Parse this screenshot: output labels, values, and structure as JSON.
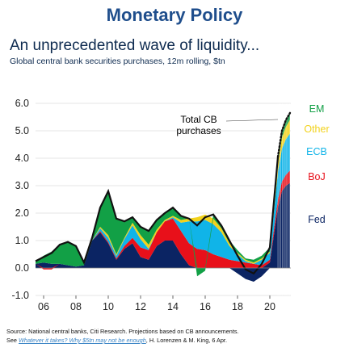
{
  "header": {
    "title": "Monetary Policy"
  },
  "chart_data": {
    "type": "area",
    "title": "An unprecedented wave of liquidity...",
    "subtitle": "Global central bank securities purchases, 12m rolling, $tn",
    "ylim": [
      -1.0,
      6.0
    ],
    "xlim": [
      2005.5,
      2021.3
    ],
    "y_ticks": [
      "6.0",
      "5.0",
      "4.0",
      "3.0",
      "2.0",
      "1.0",
      "0.0",
      "-1.0"
    ],
    "y_tick_values": [
      6,
      5,
      4,
      3,
      2,
      1,
      0,
      -1
    ],
    "x_ticks": [
      "06",
      "08",
      "10",
      "12",
      "14",
      "16",
      "18",
      "20"
    ],
    "x_tick_values": [
      2006,
      2008,
      2010,
      2012,
      2014,
      2016,
      2018,
      2020
    ],
    "x": [
      2005.5,
      2006,
      2006.5,
      2007,
      2007.5,
      2008,
      2008.5,
      2009,
      2009.5,
      2010,
      2010.5,
      2011,
      2011.5,
      2012,
      2012.5,
      2013,
      2013.5,
      2014,
      2014.5,
      2015,
      2015.5,
      2016,
      2016.5,
      2017,
      2017.5,
      2018,
      2018.5,
      2019,
      2019.5,
      2020,
      2020.5,
      2020.75,
      2021,
      2021.25
    ],
    "series": [
      {
        "name": "Fed",
        "color": "#0b2463",
        "values": [
          0.15,
          0.2,
          0.15,
          0.15,
          0.1,
          0.05,
          0.1,
          1.0,
          1.3,
          0.9,
          0.3,
          0.7,
          0.9,
          0.4,
          0.3,
          0.8,
          1.0,
          1.0,
          0.5,
          0.1,
          0.0,
          0.0,
          0.0,
          0.0,
          0.0,
          -0.2,
          -0.4,
          -0.5,
          -0.3,
          0.2,
          2.2,
          2.8,
          3.0,
          3.1
        ]
      },
      {
        "name": "BoJ",
        "color": "#e8101a",
        "values": [
          0.0,
          -0.05,
          -0.05,
          0.0,
          0.0,
          0.0,
          0.0,
          0.0,
          0.05,
          0.05,
          0.05,
          0.1,
          0.2,
          0.35,
          0.35,
          0.5,
          0.7,
          0.8,
          0.85,
          0.8,
          0.7,
          0.65,
          0.5,
          0.4,
          0.3,
          0.25,
          0.2,
          0.15,
          0.1,
          0.1,
          0.3,
          0.35,
          0.4,
          0.45
        ]
      },
      {
        "name": "ECB",
        "color": "#10b4e8",
        "values": [
          0.0,
          0.0,
          0.0,
          0.0,
          0.0,
          0.0,
          0.0,
          0.0,
          0.1,
          0.15,
          0.1,
          0.25,
          0.45,
          0.3,
          0.05,
          0.0,
          0.0,
          0.05,
          0.3,
          0.8,
          1.0,
          1.1,
          1.1,
          0.9,
          0.5,
          0.25,
          0.05,
          0.0,
          0.2,
          0.25,
          1.0,
          1.2,
          1.3,
          1.35
        ]
      },
      {
        "name": "Other",
        "color": "#f2d21c",
        "values": [
          0.0,
          0.0,
          0.0,
          0.0,
          0.0,
          0.0,
          0.0,
          0.0,
          0.05,
          0.1,
          0.05,
          0.05,
          0.1,
          0.15,
          0.15,
          0.1,
          0.05,
          0.05,
          0.1,
          0.1,
          0.15,
          0.2,
          0.2,
          0.15,
          0.1,
          0.05,
          0.05,
          0.05,
          0.05,
          0.05,
          0.3,
          0.4,
          0.45,
          0.5
        ]
      },
      {
        "name": "EM",
        "color": "#12a046",
        "values": [
          0.1,
          0.25,
          0.45,
          0.7,
          0.85,
          0.75,
          0.1,
          0.1,
          0.7,
          1.6,
          1.3,
          0.6,
          0.2,
          0.3,
          0.5,
          0.35,
          0.25,
          0.3,
          0.15,
          0.0,
          -0.3,
          -0.1,
          0.15,
          0.1,
          0.1,
          0.1,
          0.05,
          0.1,
          0.1,
          0.15,
          0.25,
          0.25,
          0.25,
          0.25
        ]
      }
    ],
    "legend": [
      "EM",
      "Other",
      "ECB",
      "BoJ",
      "Fed"
    ],
    "total_label": [
      "Total CB",
      "purchases"
    ]
  },
  "footer": {
    "line1": "Source: National central banks, Citi Research. Projections based on CB announcements.",
    "line2_prefix": "See ",
    "line2_link": "Whatever it takes? Why $5tn may not be enough",
    "line2_suffix": ", H. Lorenzen & M. King, 6 Apr."
  }
}
